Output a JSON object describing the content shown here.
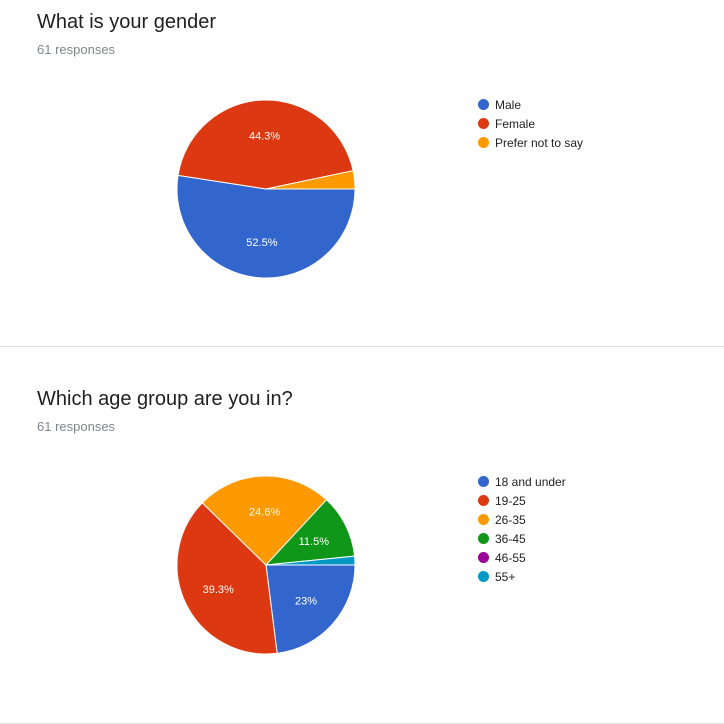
{
  "chart_data": [
    {
      "type": "pie",
      "title": "What is your gender",
      "subtitle": "61 responses",
      "categories": [
        "Male",
        "Female",
        "Prefer not to say"
      ],
      "values": [
        52.5,
        44.3,
        3.3
      ],
      "labels": [
        "52.5%",
        "44.3%",
        ""
      ],
      "colors": [
        "#3366cc",
        "#dc3912",
        "#ff9900"
      ],
      "legend_position": "right"
    },
    {
      "type": "pie",
      "title": "Which age group are you in?",
      "subtitle": "61 responses",
      "categories": [
        "18 and under",
        "19-25",
        "26-35",
        "36-45",
        "46-55",
        "55+"
      ],
      "values": [
        23,
        39.3,
        24.6,
        11.5,
        0,
        1.6
      ],
      "labels": [
        "23%",
        "39.3%",
        "24.6%",
        "11.5%",
        "",
        ""
      ],
      "colors": [
        "#3366cc",
        "#dc3912",
        "#ff9900",
        "#109618",
        "#990099",
        "#0099c6"
      ],
      "legend_position": "right"
    }
  ]
}
